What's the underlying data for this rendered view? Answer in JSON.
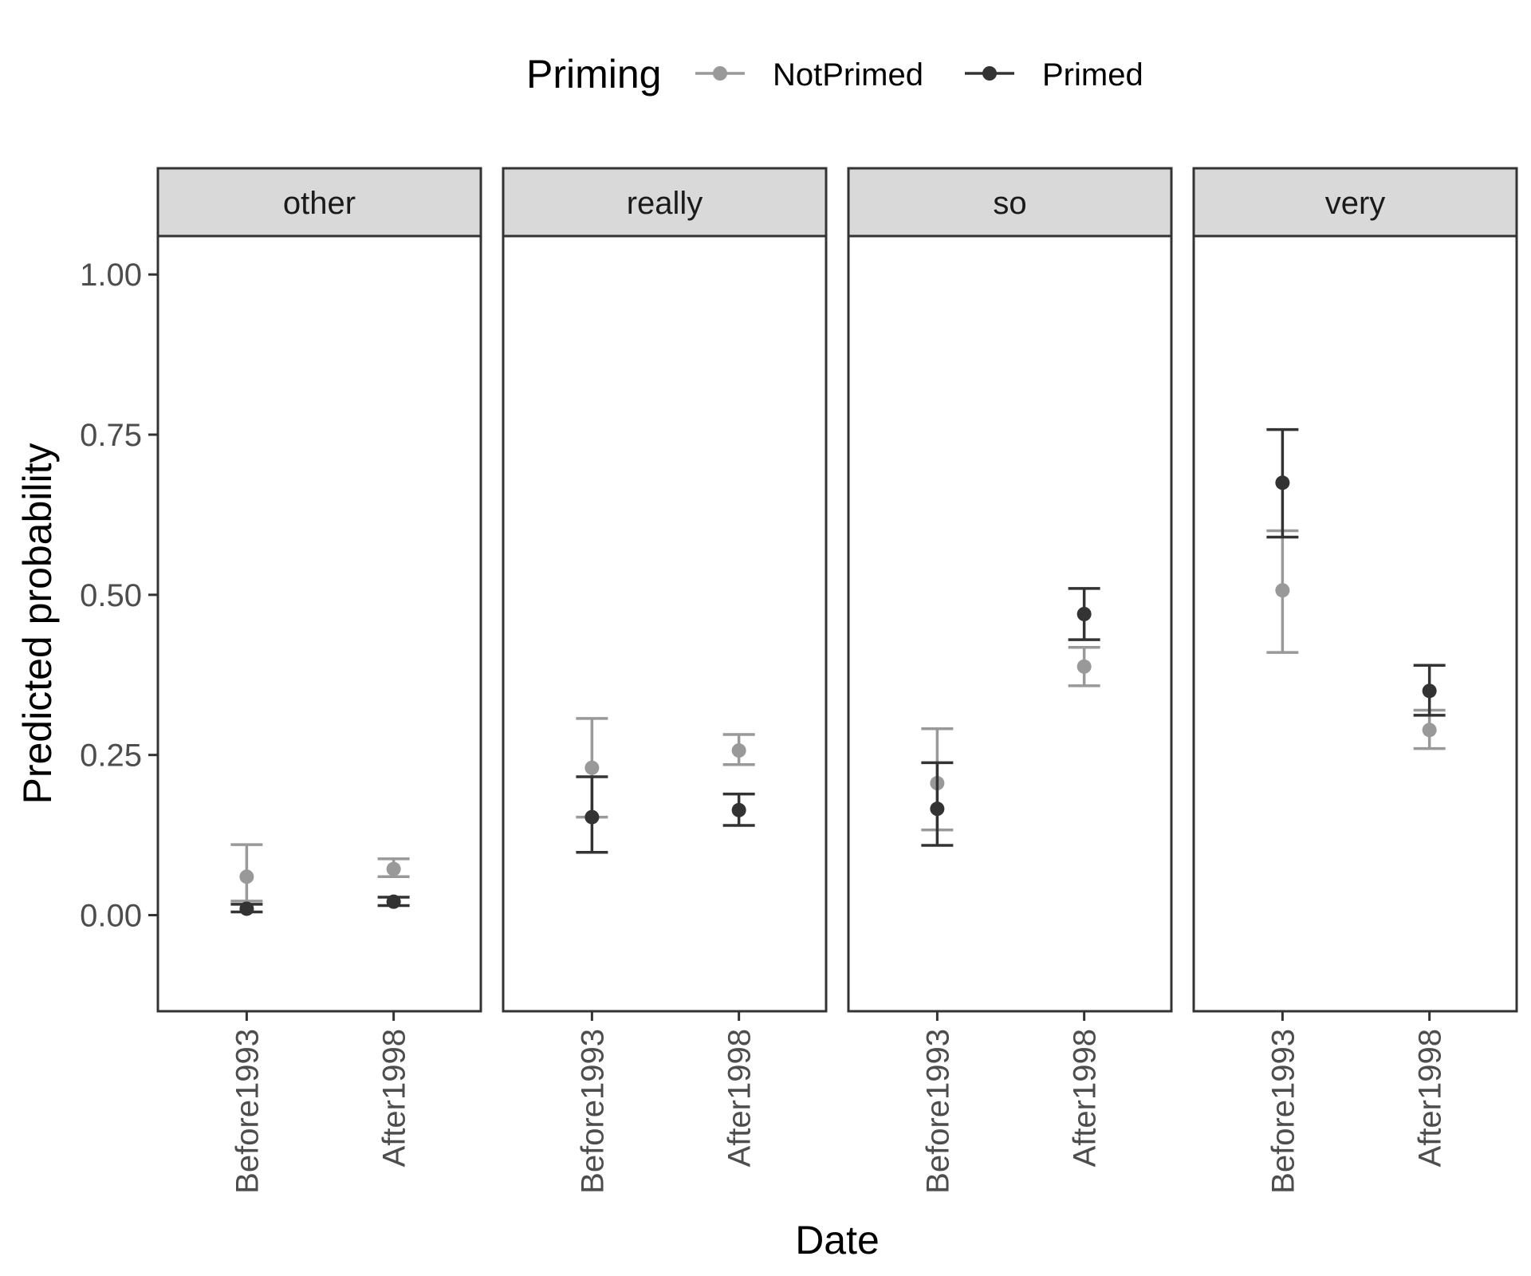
{
  "chart_data": {
    "type": "scatter",
    "subtype": "point-errorbar-faceted",
    "title": "",
    "xlabel": "Date",
    "ylabel": "Predicted probability",
    "ylim": [
      -0.15,
      1.06
    ],
    "yticks": [
      0,
      0.25,
      0.5,
      0.75,
      1
    ],
    "ytick_labels": [
      "0.00",
      "0.25",
      "0.50",
      "0.75",
      "1.00"
    ],
    "categories": [
      "Before1993",
      "After1998"
    ],
    "grid": false,
    "legend": {
      "title": "Priming",
      "position": "top",
      "entries": [
        "NotPrimed",
        "Primed"
      ]
    },
    "colors": {
      "NotPrimed": "#999999",
      "Primed": "#333333",
      "strip_bg": "#d9d9d9",
      "panel_border": "#333333"
    },
    "facets": [
      {
        "label": "other",
        "series": [
          {
            "name": "NotPrimed",
            "values": [
              0.06,
              0.072
            ],
            "lower": [
              0.022,
              0.06
            ],
            "upper": [
              0.11,
              0.088
            ]
          },
          {
            "name": "Primed",
            "values": [
              0.01,
              0.021
            ],
            "lower": [
              0.005,
              0.015
            ],
            "upper": [
              0.017,
              0.028
            ]
          }
        ]
      },
      {
        "label": "really",
        "series": [
          {
            "name": "NotPrimed",
            "values": [
              0.23,
              0.257
            ],
            "lower": [
              0.153,
              0.235
            ],
            "upper": [
              0.307,
              0.282
            ]
          },
          {
            "name": "Primed",
            "values": [
              0.153,
              0.164
            ],
            "lower": [
              0.098,
              0.14
            ],
            "upper": [
              0.216,
              0.189
            ]
          }
        ]
      },
      {
        "label": "so",
        "series": [
          {
            "name": "NotPrimed",
            "values": [
              0.206,
              0.388
            ],
            "lower": [
              0.133,
              0.358
            ],
            "upper": [
              0.291,
              0.418
            ]
          },
          {
            "name": "Primed",
            "values": [
              0.166,
              0.47
            ],
            "lower": [
              0.109,
              0.43
            ],
            "upper": [
              0.238,
              0.51
            ]
          }
        ]
      },
      {
        "label": "very",
        "series": [
          {
            "name": "NotPrimed",
            "values": [
              0.507,
              0.289
            ],
            "lower": [
              0.41,
              0.26
            ],
            "upper": [
              0.6,
              0.32
            ]
          },
          {
            "name": "Primed",
            "values": [
              0.675,
              0.35
            ],
            "lower": [
              0.59,
              0.312
            ],
            "upper": [
              0.758,
              0.39
            ]
          }
        ]
      }
    ]
  }
}
